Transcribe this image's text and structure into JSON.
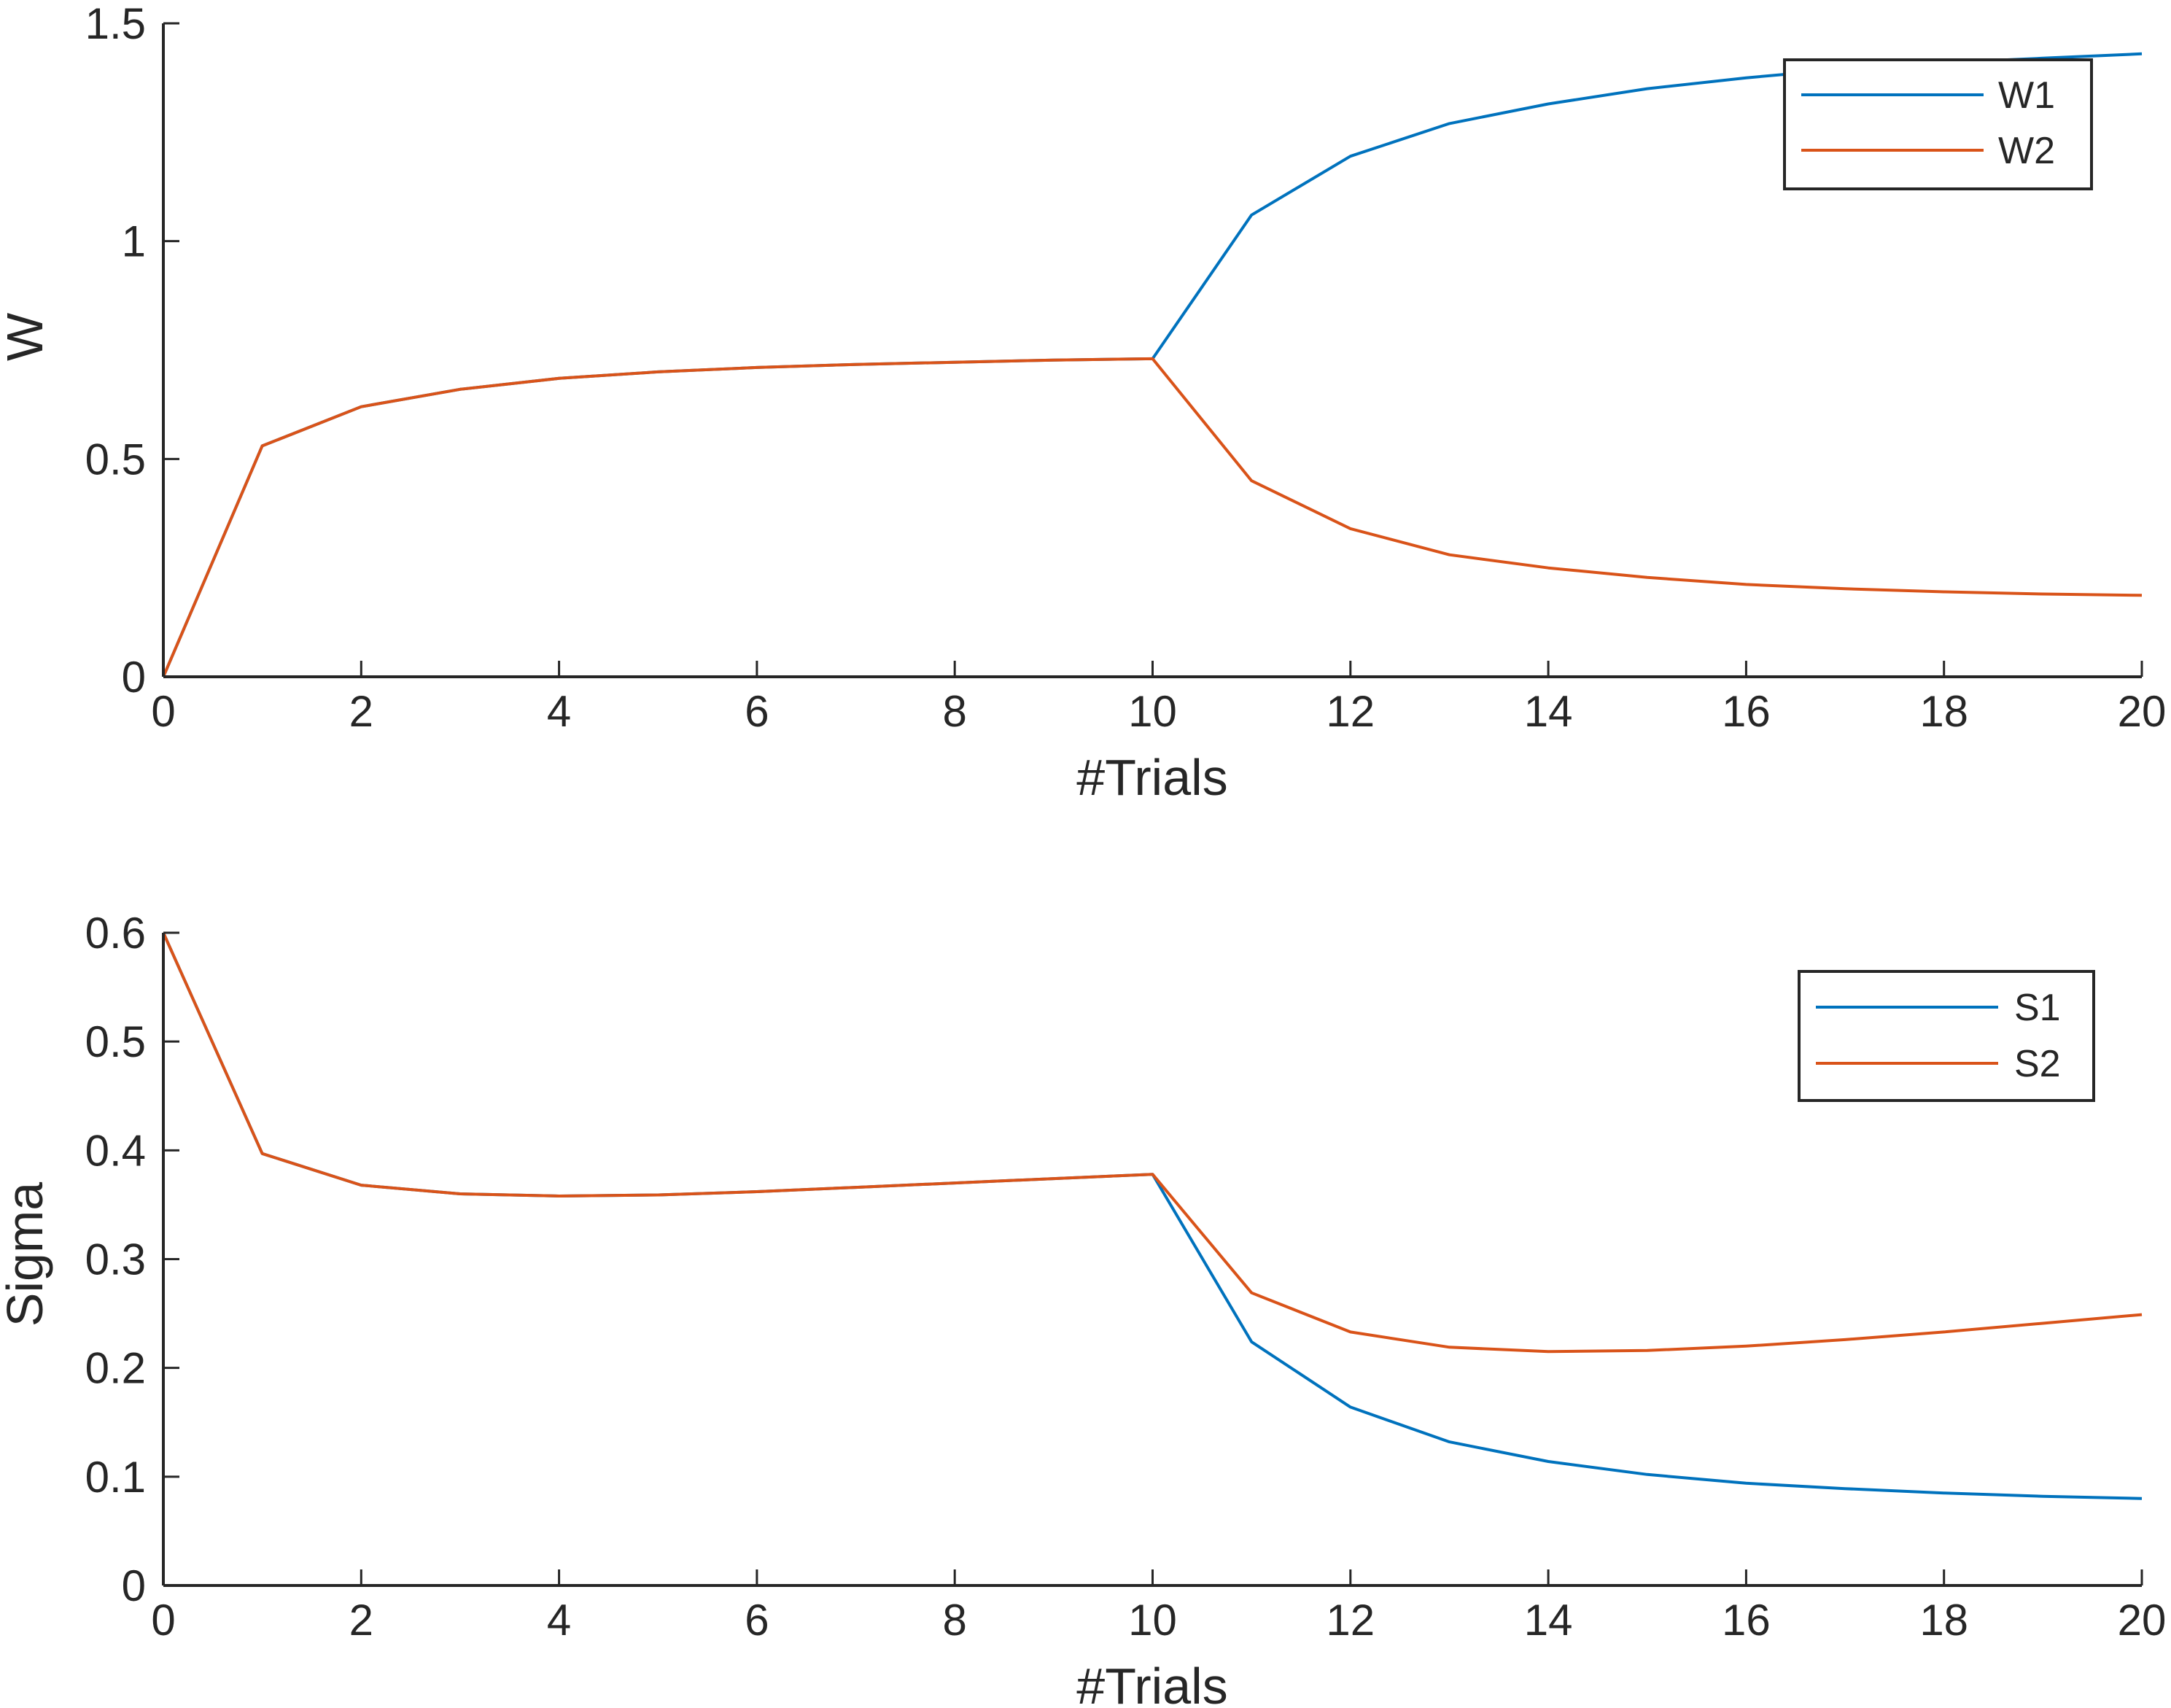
{
  "chart_data": [
    {
      "type": "line",
      "title": "",
      "xlabel": "#Trials",
      "ylabel": "W",
      "xlim": [
        0,
        20
      ],
      "ylim": [
        0,
        1.5
      ],
      "xticks": [
        0,
        2,
        4,
        6,
        8,
        10,
        12,
        14,
        16,
        18,
        20
      ],
      "xtick_labels": [
        "0",
        "2",
        "4",
        "6",
        "8",
        "10",
        "12",
        "14",
        "16",
        "18",
        "20"
      ],
      "yticks": [
        0,
        0.5,
        1,
        1.5
      ],
      "ytick_labels": [
        "0",
        "0.5",
        "1",
        "1.5"
      ],
      "grid": false,
      "legend_position": "top-right",
      "x": [
        0,
        1,
        2,
        3,
        4,
        5,
        6,
        7,
        8,
        9,
        10,
        11,
        12,
        13,
        14,
        15,
        16,
        17,
        18,
        19,
        20
      ],
      "series": [
        {
          "name": "W1",
          "color": "#0072BD",
          "values": [
            0,
            0.53,
            0.62,
            0.66,
            0.685,
            0.7,
            0.71,
            0.717,
            0.722,
            0.727,
            0.73,
            1.06,
            1.195,
            1.27,
            1.315,
            1.35,
            1.375,
            1.395,
            1.41,
            1.42,
            1.43
          ]
        },
        {
          "name": "W2",
          "color": "#D95319",
          "values": [
            0,
            0.53,
            0.62,
            0.66,
            0.685,
            0.7,
            0.71,
            0.717,
            0.722,
            0.727,
            0.73,
            0.45,
            0.34,
            0.28,
            0.25,
            0.228,
            0.212,
            0.202,
            0.195,
            0.19,
            0.187
          ]
        }
      ]
    },
    {
      "type": "line",
      "title": "",
      "xlabel": "#Trials",
      "ylabel": "Sigma",
      "xlim": [
        0,
        20
      ],
      "ylim": [
        0,
        0.6
      ],
      "xticks": [
        0,
        2,
        4,
        6,
        8,
        10,
        12,
        14,
        16,
        18,
        20
      ],
      "xtick_labels": [
        "0",
        "2",
        "4",
        "6",
        "8",
        "10",
        "12",
        "14",
        "16",
        "18",
        "20"
      ],
      "yticks": [
        0,
        0.1,
        0.2,
        0.3,
        0.4,
        0.5,
        0.6
      ],
      "ytick_labels": [
        "0",
        "0.1",
        "0.2",
        "0.3",
        "0.4",
        "0.5",
        "0.6"
      ],
      "grid": false,
      "legend_position": "top-right",
      "x": [
        0,
        1,
        2,
        3,
        4,
        5,
        6,
        7,
        8,
        9,
        10,
        11,
        12,
        13,
        14,
        15,
        16,
        17,
        18,
        19,
        20
      ],
      "series": [
        {
          "name": "S1",
          "color": "#0072BD",
          "values": [
            0.6,
            0.397,
            0.368,
            0.36,
            0.358,
            0.359,
            0.362,
            0.366,
            0.37,
            0.374,
            0.378,
            0.224,
            0.164,
            0.132,
            0.114,
            0.102,
            0.094,
            0.089,
            0.085,
            0.082,
            0.08
          ]
        },
        {
          "name": "S2",
          "color": "#D95319",
          "values": [
            0.6,
            0.397,
            0.368,
            0.36,
            0.358,
            0.359,
            0.362,
            0.366,
            0.37,
            0.374,
            0.378,
            0.269,
            0.233,
            0.219,
            0.215,
            0.216,
            0.22,
            0.226,
            0.233,
            0.241,
            0.249
          ]
        }
      ]
    }
  ]
}
